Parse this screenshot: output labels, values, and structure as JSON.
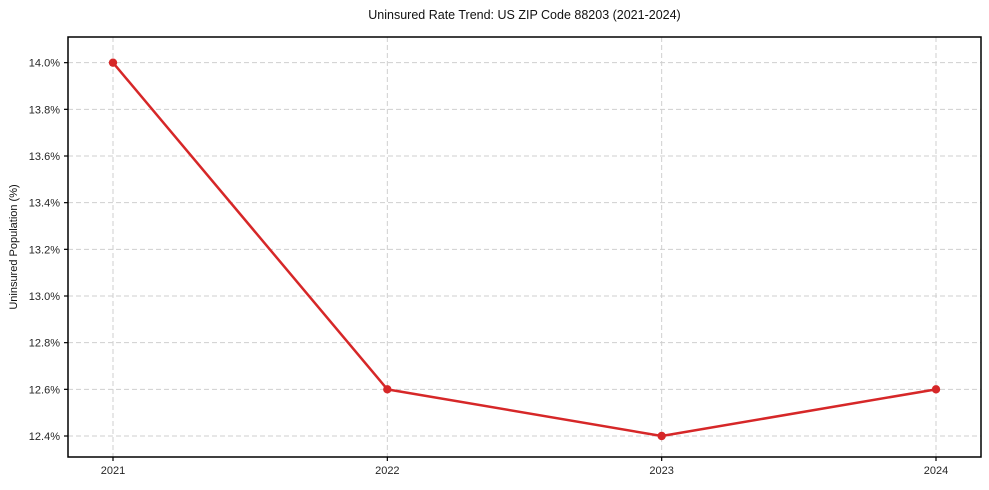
{
  "chart_data": {
    "type": "line",
    "title": "Uninsured Rate Trend: US ZIP Code 88203 (2021-2024)",
    "xlabel": "",
    "ylabel": "Uninsured Population (%)",
    "categories": [
      "2021",
      "2022",
      "2023",
      "2024"
    ],
    "values": [
      14.0,
      12.6,
      12.4,
      12.6
    ],
    "ylim": [
      12.31,
      14.11
    ],
    "yticks": [
      12.4,
      12.6,
      12.8,
      13.0,
      13.2,
      13.4,
      13.6,
      13.8,
      14.0
    ],
    "ytick_suffix": "%",
    "grid": true,
    "grid_style": "dashed",
    "legend": "none",
    "colors": {
      "line": "#d62728",
      "marker": "#d62728",
      "grid": "#cfcfcf",
      "spine": "#000000",
      "text": "#262626"
    }
  }
}
